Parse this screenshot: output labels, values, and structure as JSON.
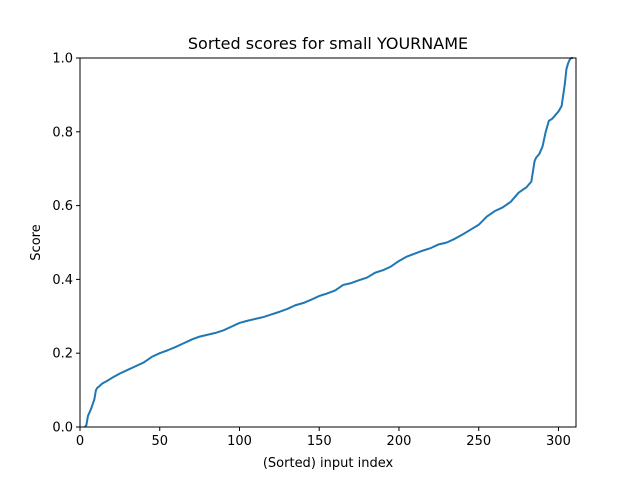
{
  "chart_data": {
    "type": "line",
    "title": "Sorted scores for small YOURNAME",
    "xlabel": "(Sorted) input index",
    "ylabel": "Score",
    "xlim": [
      0,
      311
    ],
    "ylim": [
      0.0,
      1.0
    ],
    "xticks": [
      0,
      50,
      100,
      150,
      200,
      250,
      300
    ],
    "xtick_labels": [
      "0",
      "50",
      "100",
      "150",
      "200",
      "250",
      "300"
    ],
    "yticks": [
      0.0,
      0.2,
      0.4,
      0.6,
      0.8,
      1.0
    ],
    "ytick_labels": [
      "0.0",
      "0.2",
      "0.4",
      "0.6",
      "0.8",
      "1.0"
    ],
    "grid": false,
    "color": "#1f77b4",
    "series": [
      {
        "x": [
          3,
          4,
          5,
          7,
          9,
          10,
          11,
          12,
          14,
          17,
          20,
          25,
          30,
          35,
          40,
          45,
          50,
          55,
          60,
          65,
          70,
          75,
          80,
          85,
          90,
          95,
          100,
          105,
          110,
          115,
          120,
          125,
          130,
          135,
          140,
          145,
          150,
          155,
          160,
          165,
          170,
          175,
          180,
          185,
          190,
          195,
          200,
          205,
          210,
          215,
          220,
          225,
          230,
          235,
          240,
          245,
          250,
          255,
          260,
          265,
          270,
          275,
          280,
          283,
          285,
          286,
          288,
          290,
          292,
          294,
          296,
          298,
          300,
          302,
          304,
          305,
          306,
          307,
          308,
          309
        ],
        "values": [
          0.0,
          0.005,
          0.03,
          0.05,
          0.075,
          0.1,
          0.107,
          0.11,
          0.118,
          0.125,
          0.133,
          0.145,
          0.155,
          0.165,
          0.175,
          0.19,
          0.2,
          0.208,
          0.217,
          0.227,
          0.237,
          0.245,
          0.25,
          0.255,
          0.262,
          0.272,
          0.282,
          0.288,
          0.293,
          0.298,
          0.305,
          0.312,
          0.32,
          0.33,
          0.336,
          0.345,
          0.355,
          0.362,
          0.37,
          0.385,
          0.39,
          0.398,
          0.405,
          0.418,
          0.425,
          0.435,
          0.45,
          0.462,
          0.47,
          0.478,
          0.485,
          0.495,
          0.5,
          0.51,
          0.522,
          0.535,
          0.548,
          0.57,
          0.585,
          0.595,
          0.61,
          0.635,
          0.65,
          0.665,
          0.72,
          0.73,
          0.74,
          0.76,
          0.8,
          0.83,
          0.835,
          0.845,
          0.855,
          0.87,
          0.93,
          0.97,
          0.985,
          0.995,
          1.0,
          1.0
        ]
      }
    ]
  }
}
